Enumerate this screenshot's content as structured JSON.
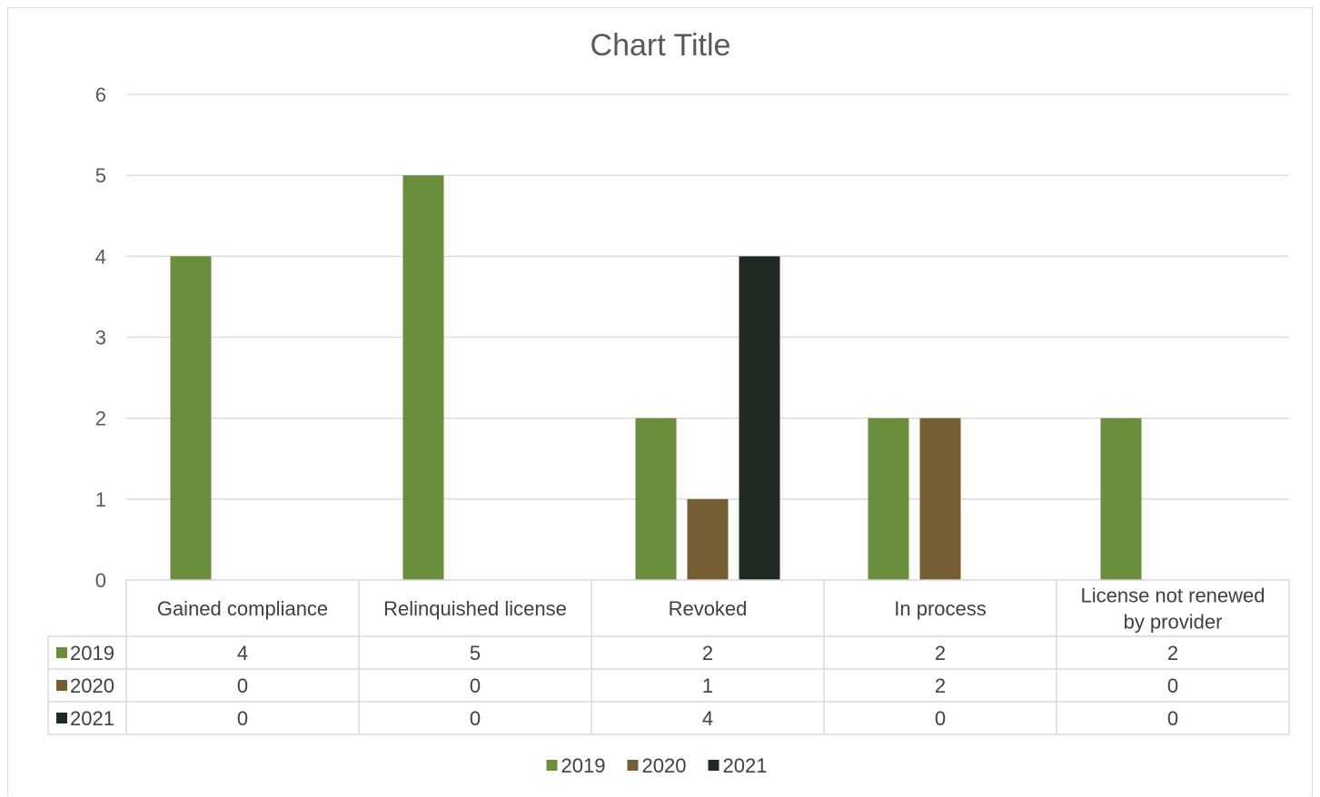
{
  "chart_data": {
    "type": "bar",
    "title": "Chart Title",
    "categories": [
      [
        "Gained compliance"
      ],
      [
        "Relinquished license"
      ],
      [
        "Revoked"
      ],
      [
        "In process"
      ],
      [
        "License not renewed",
        "by provider"
      ]
    ],
    "series": [
      {
        "name": "2019",
        "color": "#6b8e3c",
        "values": [
          4,
          5,
          2,
          2,
          2
        ]
      },
      {
        "name": "2020",
        "color": "#755e32",
        "values": [
          0,
          0,
          1,
          2,
          0
        ]
      },
      {
        "name": "2021",
        "color": "#1f2a22",
        "values": [
          0,
          0,
          4,
          0,
          0
        ]
      }
    ],
    "ylim": [
      0,
      6
    ],
    "yticks": [
      0,
      1,
      2,
      3,
      4,
      5,
      6
    ],
    "grid": true,
    "data_table": true,
    "legend_position": "bottom",
    "colors": {
      "grid": "#d9d9d9",
      "text": "#595959"
    }
  }
}
